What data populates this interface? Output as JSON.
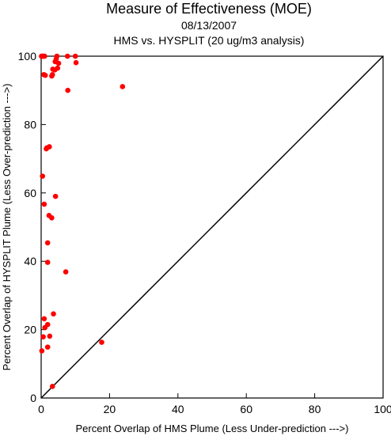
{
  "chart_data": {
    "type": "scatter",
    "title": "Measure of Effectiveness (MOE)",
    "subtitle_lines": [
      "08/13/2007",
      "HMS vs. HYSPLIT  (20 ug/m3 analysis)"
    ],
    "xlabel": "Percent Overlap of HMS Plume (Less Under-prediction --->)",
    "ylabel": "Percent Overlap of HYSPLIT Plume (Less Over-prediction --->)",
    "xlim": [
      0,
      100
    ],
    "ylim": [
      0,
      100
    ],
    "x_ticks": [
      "0",
      "20",
      "40",
      "60",
      "80",
      "100"
    ],
    "y_ticks": [
      "0",
      "20",
      "40",
      "60",
      "80",
      "100"
    ],
    "reference_line": "y = x",
    "grid": false,
    "legend": "none",
    "point_color": "#ff0000",
    "series": [
      {
        "points": [
          [
            0.1,
            100
          ],
          [
            0.3,
            100
          ],
          [
            0.5,
            100
          ],
          [
            0.8,
            100
          ],
          [
            1.0,
            100
          ],
          [
            4.6,
            100
          ],
          [
            7.7,
            100
          ],
          [
            10.0,
            100
          ],
          [
            4.4,
            99.2
          ],
          [
            4.1,
            98.4
          ],
          [
            5.1,
            97.9
          ],
          [
            10.2,
            98.1
          ],
          [
            4.8,
            96.5
          ],
          [
            3.4,
            96.2
          ],
          [
            4.0,
            96.0
          ],
          [
            3.3,
            94.6
          ],
          [
            3.1,
            94.2
          ],
          [
            0.8,
            94.6
          ],
          [
            1.2,
            94.4
          ],
          [
            23.8,
            91.1
          ],
          [
            7.8,
            90.0
          ],
          [
            2.4,
            73.5
          ],
          [
            1.7,
            73.2
          ],
          [
            1.5,
            72.9
          ],
          [
            0.4,
            64.9
          ],
          [
            4.2,
            59.0
          ],
          [
            0.9,
            56.7
          ],
          [
            2.3,
            53.4
          ],
          [
            3.1,
            52.7
          ],
          [
            1.9,
            45.4
          ],
          [
            1.9,
            39.7
          ],
          [
            7.2,
            36.9
          ],
          [
            3.6,
            24.6
          ],
          [
            0.9,
            23.2
          ],
          [
            1.1,
            20.6
          ],
          [
            1.9,
            21.5
          ],
          [
            2.5,
            18.1
          ],
          [
            0.6,
            17.9
          ],
          [
            17.7,
            16.3
          ],
          [
            1.9,
            14.9
          ],
          [
            0.2,
            13.8
          ],
          [
            3.3,
            3.4
          ]
        ]
      }
    ]
  }
}
